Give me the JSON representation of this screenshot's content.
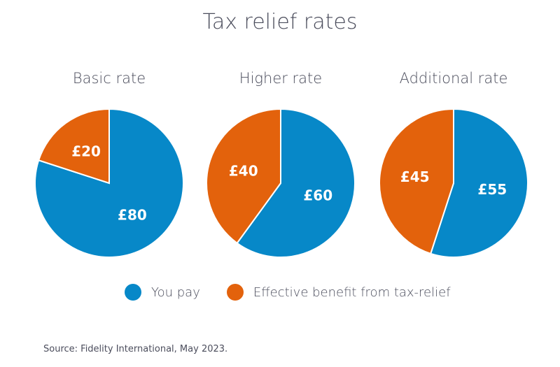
{
  "chart_data": {
    "type": "pie",
    "title": "Tax relief rates",
    "colors": {
      "You pay": "#0788c8",
      "Effective benefit from tax-relief": "#e3620c"
    },
    "legend": [
      "You pay",
      "Effective benefit from tax-relief"
    ],
    "legend_placement": "bottom",
    "pies": [
      {
        "title": "Basic rate",
        "slices": [
          {
            "series": "You pay",
            "value": 80,
            "label": "£80"
          },
          {
            "series": "Effective benefit from tax-relief",
            "value": 20,
            "label": "£20"
          }
        ]
      },
      {
        "title": "Higher rate",
        "slices": [
          {
            "series": "You pay",
            "value": 60,
            "label": "£60"
          },
          {
            "series": "Effective benefit from tax-relief",
            "value": 40,
            "label": "£40"
          }
        ]
      },
      {
        "title": "Additional rate",
        "slices": [
          {
            "series": "You pay",
            "value": 55,
            "label": "£55"
          },
          {
            "series": "Effective benefit from tax-relief",
            "value": 45,
            "label": "£45"
          }
        ]
      }
    ]
  },
  "source": "Source: Fidelity International, May 2023."
}
